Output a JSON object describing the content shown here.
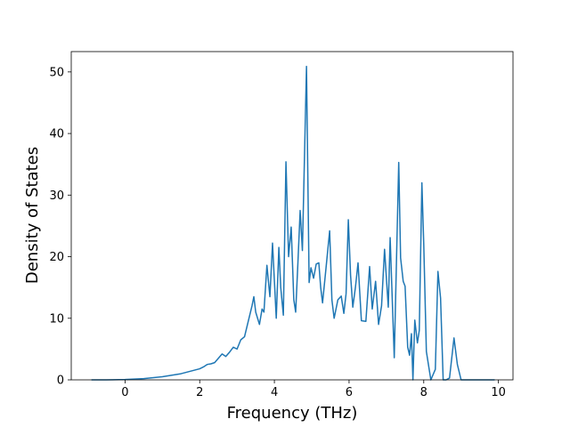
{
  "chart_data": {
    "type": "line",
    "x_label": "Frequency (THz)",
    "y_label": "Density of States",
    "x": [
      -0.9,
      -0.5,
      0,
      0.5,
      1.0,
      1.5,
      2.0,
      2.1,
      2.2,
      2.3,
      2.4,
      2.5,
      2.6,
      2.7,
      2.8,
      2.9,
      3.0,
      3.1,
      3.2,
      3.3,
      3.4,
      3.45,
      3.5,
      3.6,
      3.67,
      3.72,
      3.8,
      3.88,
      3.95,
      4.05,
      4.12,
      4.17,
      4.24,
      4.31,
      4.38,
      4.45,
      4.52,
      4.57,
      4.63,
      4.69,
      4.75,
      4.86,
      4.93,
      4.98,
      5.05,
      5.12,
      5.19,
      5.24,
      5.29,
      5.38,
      5.48,
      5.54,
      5.6,
      5.7,
      5.79,
      5.86,
      5.92,
      5.98,
      6.04,
      6.1,
      6.17,
      6.24,
      6.33,
      6.45,
      6.55,
      6.62,
      6.71,
      6.79,
      6.87,
      6.95,
      7.05,
      7.1,
      7.21,
      7.33,
      7.38,
      7.45,
      7.5,
      7.57,
      7.62,
      7.67,
      7.71,
      7.76,
      7.83,
      7.88,
      7.95,
      8.0,
      8.07,
      8.19,
      8.31,
      8.38,
      8.45,
      8.52,
      8.6,
      8.69,
      8.81,
      8.9,
      9.0,
      9.5,
      9.9
    ],
    "series": [
      {
        "color": "#1f77b4",
        "values": [
          0,
          0,
          0.05,
          0.2,
          0.5,
          1.0,
          1.8,
          2.1,
          2.5,
          2.6,
          2.8,
          3.5,
          4.2,
          3.8,
          4.5,
          5.3,
          5.0,
          6.5,
          7.0,
          9.5,
          12.0,
          13.5,
          11,
          9.0,
          11.5,
          11,
          18.6,
          13.5,
          22.2,
          10,
          21.5,
          15,
          10.5,
          35.4,
          20,
          24.8,
          13,
          11,
          19,
          27.5,
          21,
          50.9,
          15.8,
          18.2,
          16.5,
          18.8,
          19,
          15,
          12.5,
          18,
          24.2,
          13,
          10,
          13,
          13.6,
          10.8,
          14,
          26,
          17,
          11.8,
          15,
          19,
          9.6,
          9.5,
          18.4,
          11.5,
          16,
          9,
          12,
          21.2,
          11.8,
          23.1,
          3.6,
          35.3,
          19.8,
          16,
          15.2,
          5.3,
          4,
          7.5,
          0,
          9.7,
          6,
          8,
          32,
          22,
          4.6,
          0,
          1.7,
          17.6,
          13.3,
          0,
          0,
          0.3,
          6.8,
          2.5,
          0,
          0,
          0
        ]
      }
    ],
    "xlim": [
      -1.44,
      10.39
    ],
    "xticks": [
      0,
      2,
      4,
      6,
      8,
      10
    ],
    "ylim": [
      0,
      53.3
    ],
    "yticks": [
      0,
      10,
      20,
      30,
      40,
      50
    ]
  }
}
